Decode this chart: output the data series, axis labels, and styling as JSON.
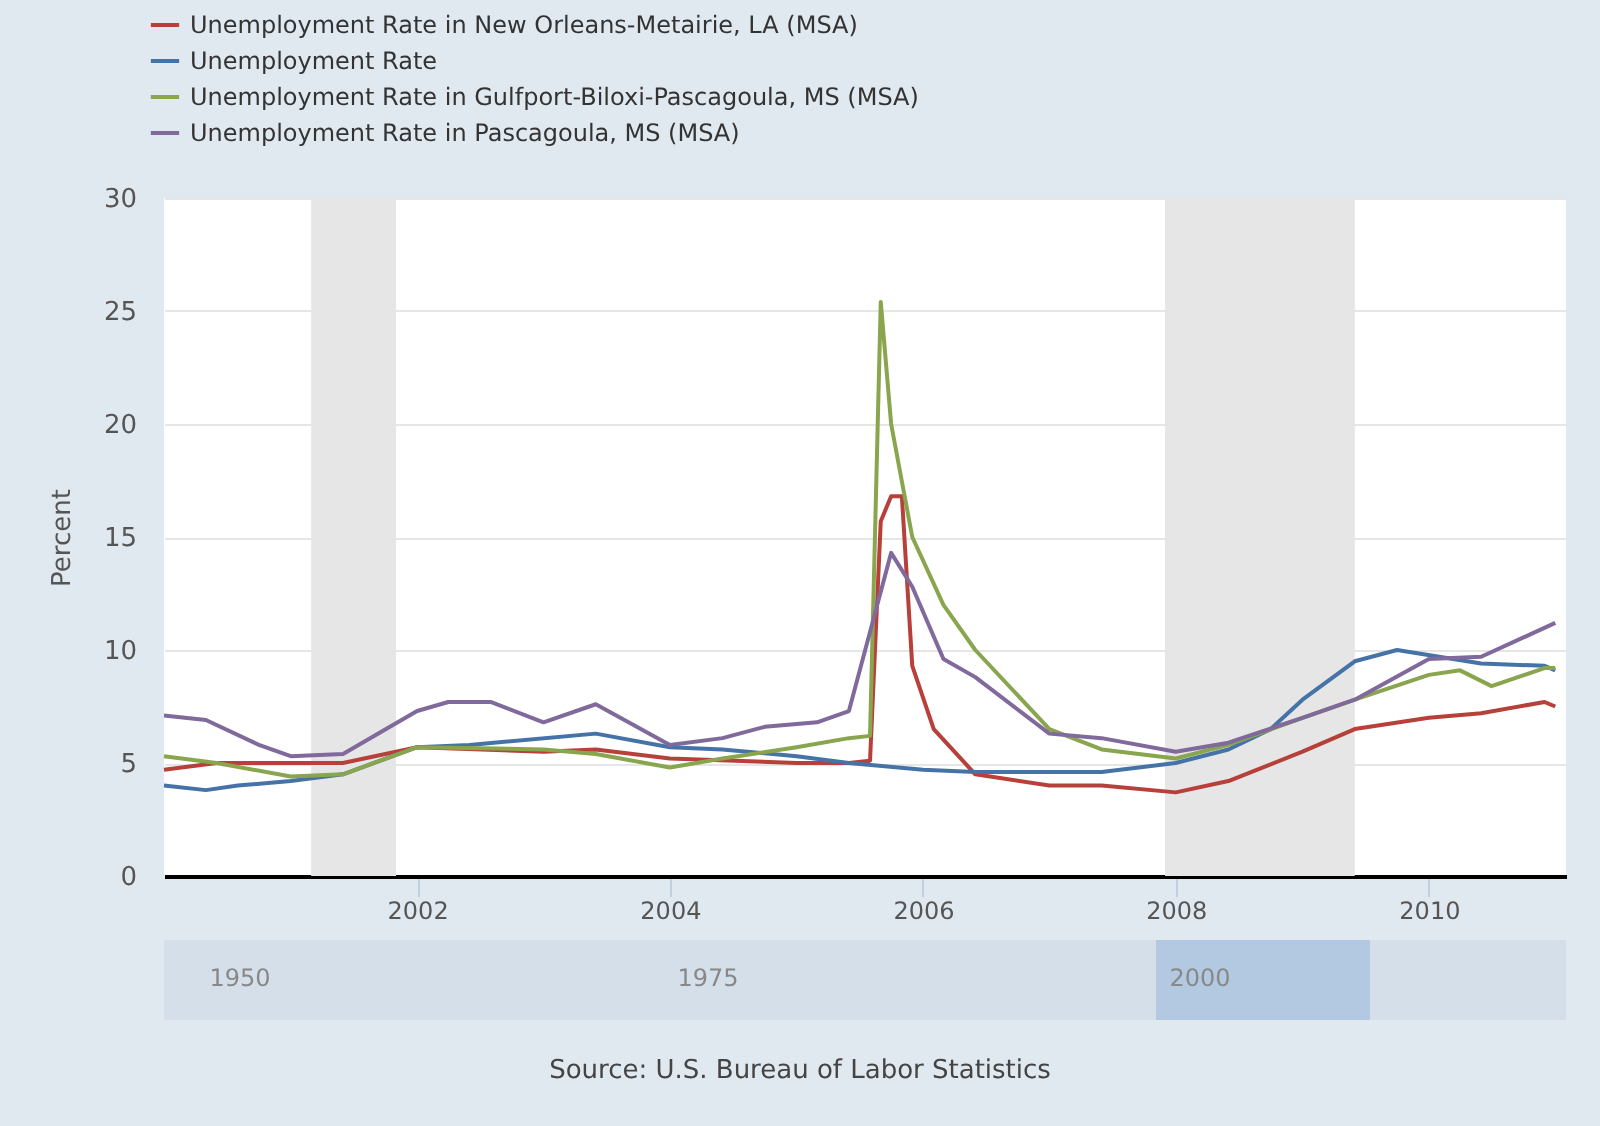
{
  "chart_data": {
    "type": "line",
    "ylabel": "Percent",
    "annotations": [
      "Source: U.S. Bureau of Labor Statistics",
      "1950",
      "1975",
      "2000"
    ],
    "xlim": [
      "2000-01",
      "2011-02"
    ],
    "xticks": [
      "2002",
      "2004",
      "2006",
      "2008",
      "2010"
    ],
    "ylim": [
      0,
      30
    ],
    "yticks": [
      0,
      5,
      10,
      15,
      20,
      25,
      30
    ],
    "grid": "y",
    "legend": "top left",
    "bands": [
      {
        "axis": "x",
        "from": "2001-03",
        "to": "2001-11",
        "color": "#e6e6e6"
      },
      {
        "axis": "x",
        "from": "2007-12",
        "to": "2009-06",
        "color": "#e6e6e6"
      }
    ],
    "series": [
      {
        "name": "Unemployment Rate in New Orleans-Metairie, LA (MSA)",
        "color": "#b7403a",
        "x": [
          "2000-01",
          "2000-06",
          "2001-01",
          "2001-06",
          "2002-01",
          "2003-01",
          "2003-06",
          "2004-01",
          "2005-01",
          "2005-06",
          "2005-08",
          "2005-09",
          "2005-10",
          "2005-11",
          "2005-12",
          "2006-02",
          "2006-06",
          "2007-01",
          "2007-06",
          "2008-01",
          "2008-06",
          "2009-01",
          "2009-06",
          "2010-01",
          "2010-06",
          "2010-12",
          "2011-01"
        ],
        "values": [
          4.7,
          5.0,
          5.0,
          5.0,
          5.7,
          5.5,
          5.6,
          5.2,
          5.0,
          5.0,
          5.1,
          15.7,
          16.8,
          16.8,
          9.3,
          6.5,
          4.5,
          4.0,
          4.0,
          3.7,
          4.2,
          5.5,
          6.5,
          7.0,
          7.2,
          7.7,
          7.5
        ]
      },
      {
        "name": "Unemployment Rate",
        "color": "#4572a7",
        "x": [
          "2000-01",
          "2000-05",
          "2000-08",
          "2001-01",
          "2001-06",
          "2002-01",
          "2002-06",
          "2003-06",
          "2004-01",
          "2004-06",
          "2005-01",
          "2005-06",
          "2006-01",
          "2006-06",
          "2007-01",
          "2007-06",
          "2008-01",
          "2008-06",
          "2008-10",
          "2009-01",
          "2009-06",
          "2009-10",
          "2010-06",
          "2010-12",
          "2011-01"
        ],
        "values": [
          4.0,
          3.8,
          4.0,
          4.2,
          4.5,
          5.7,
          5.8,
          6.3,
          5.7,
          5.6,
          5.3,
          5.0,
          4.7,
          4.6,
          4.6,
          4.6,
          5.0,
          5.6,
          6.5,
          7.8,
          9.5,
          10.0,
          9.4,
          9.3,
          9.1
        ]
      },
      {
        "name": "Unemployment Rate in Gulfport-Biloxi-Pascagoula, MS (MSA)",
        "color": "#89a54e",
        "x": [
          "2000-01",
          "2000-06",
          "2001-01",
          "2001-06",
          "2002-01",
          "2003-01",
          "2003-06",
          "2004-01",
          "2004-06",
          "2005-01",
          "2005-06",
          "2005-08",
          "2005-09",
          "2005-10",
          "2005-12",
          "2006-03",
          "2006-06",
          "2007-01",
          "2007-06",
          "2008-01",
          "2008-06",
          "2009-01",
          "2009-06",
          "2010-01",
          "2010-04",
          "2010-07",
          "2010-12",
          "2011-01"
        ],
        "values": [
          5.3,
          5.0,
          4.4,
          4.5,
          5.7,
          5.6,
          5.4,
          4.8,
          5.2,
          5.7,
          6.1,
          6.2,
          25.4,
          20.0,
          15.0,
          12.0,
          10.0,
          6.5,
          5.6,
          5.2,
          5.8,
          7.0,
          7.8,
          8.9,
          9.1,
          8.4,
          9.2,
          9.2
        ]
      },
      {
        "name": "Unemployment Rate in Pascagoula, MS (MSA)",
        "color": "#80699b",
        "x": [
          "2000-01",
          "2000-05",
          "2000-10",
          "2001-01",
          "2001-06",
          "2002-01",
          "2002-04",
          "2002-08",
          "2003-01",
          "2003-06",
          "2004-01",
          "2004-06",
          "2004-10",
          "2005-03",
          "2005-06",
          "2005-08",
          "2005-10",
          "2005-12",
          "2006-03",
          "2006-06",
          "2007-01",
          "2007-06",
          "2008-01",
          "2008-06",
          "2009-01",
          "2009-06",
          "2010-01",
          "2010-06",
          "2011-01"
        ],
        "values": [
          7.1,
          6.9,
          5.8,
          5.3,
          5.4,
          7.3,
          7.7,
          7.7,
          6.8,
          7.6,
          5.8,
          6.1,
          6.6,
          6.8,
          7.3,
          10.8,
          14.3,
          12.8,
          9.6,
          8.8,
          6.3,
          6.1,
          5.5,
          5.9,
          7.0,
          7.8,
          9.6,
          9.7,
          11.2
        ]
      }
    ]
  }
}
